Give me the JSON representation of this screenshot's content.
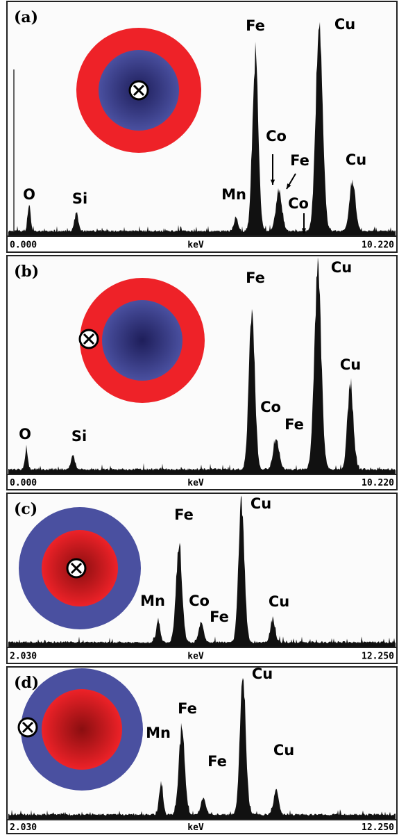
{
  "panels": [
    {
      "label": "(a)",
      "axis_start": "0.000",
      "axis_unit": "keV",
      "axis_end": "10.220",
      "peak_labels": [
        "O",
        "Si",
        "Mn",
        "Fe",
        "Co",
        "Fe",
        "Co",
        "Cu",
        "Cu"
      ]
    },
    {
      "label": "(b)",
      "axis_start": "0.000",
      "axis_unit": "keV",
      "axis_end": "10.220",
      "peak_labels": [
        "O",
        "Si",
        "Fe",
        "Co",
        "Fe",
        "Cu",
        "Cu"
      ]
    },
    {
      "label": "(c)",
      "axis_start": "2.030",
      "axis_unit": "keV",
      "axis_end": "12.250",
      "peak_labels": [
        "Mn",
        "Co",
        "Fe",
        "Fe",
        "Cu",
        "Cu"
      ]
    },
    {
      "label": "(d)",
      "axis_start": "2.030",
      "axis_unit": "keV",
      "axis_end": "12.250",
      "peak_labels": [
        "Mn",
        "Fe",
        "Fe",
        "Cu",
        "Cu"
      ]
    }
  ]
}
